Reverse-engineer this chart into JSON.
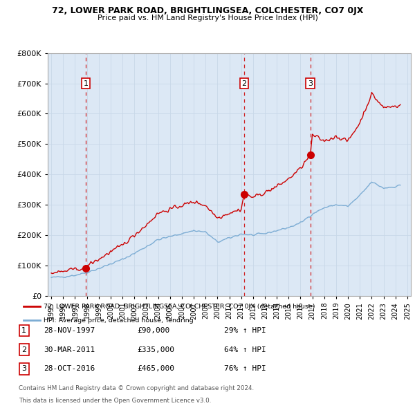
{
  "title": "72, LOWER PARK ROAD, BRIGHTLINGSEA, COLCHESTER, CO7 0JX",
  "subtitle": "Price paid vs. HM Land Registry's House Price Index (HPI)",
  "legend_line1": "72, LOWER PARK ROAD, BRIGHTLINGSEA, COLCHESTER, CO7 0JX (detached house)",
  "legend_line2": "HPI: Average price, detached house, Tendring",
  "sale_dates": [
    "28-NOV-1997",
    "30-MAR-2011",
    "28-OCT-2016"
  ],
  "sale_prices": [
    90000,
    335000,
    465000
  ],
  "sale_hpi_pct": [
    "29%",
    "64%",
    "76%"
  ],
  "footer1": "Contains HM Land Registry data © Crown copyright and database right 2024.",
  "footer2": "This data is licensed under the Open Government Licence v3.0.",
  "red_color": "#cc0000",
  "blue_color": "#7dadd4",
  "grid_color": "#c8d8e8",
  "bg_color": "#ffffff",
  "chart_bg": "#dce8f5",
  "ylim": [
    0,
    800000
  ],
  "yticks": [
    0,
    100000,
    200000,
    300000,
    400000,
    500000,
    600000,
    700000,
    800000
  ],
  "xlim_start": 1994.7,
  "xlim_end": 2025.3,
  "sale_years": [
    1997.91,
    2011.25,
    2016.83
  ],
  "hpi_anchors_x": [
    1995,
    1996,
    1997,
    1998,
    1999,
    2000,
    2001,
    2002,
    2003,
    2004,
    2005,
    2006,
    2007,
    2008,
    2009,
    2010,
    2011,
    2012,
    2013,
    2014,
    2015,
    2016,
    2017,
    2018,
    2019,
    2020,
    2021,
    2022,
    2023,
    2024,
    2024.5
  ],
  "hpi_anchors_y": [
    60000,
    63000,
    68000,
    77000,
    90000,
    105000,
    120000,
    140000,
    162000,
    185000,
    195000,
    205000,
    215000,
    210000,
    177000,
    190000,
    204000,
    200000,
    205000,
    215000,
    225000,
    240000,
    270000,
    290000,
    300000,
    295000,
    330000,
    375000,
    355000,
    360000,
    365000
  ],
  "red_anchors_x": [
    1995,
    1996,
    1997,
    1997.91,
    1998,
    1999,
    2000,
    2001,
    2002,
    2003,
    2004,
    2005,
    2006,
    2007,
    2008,
    2009,
    2010,
    2011,
    2011.25,
    2012,
    2013,
    2014,
    2015,
    2016,
    2016.83,
    2017,
    2018,
    2019,
    2020,
    2021,
    2022,
    2023,
    2024,
    2024.5
  ],
  "red_anchors_y": [
    75000,
    80000,
    88000,
    90000,
    100000,
    120000,
    145000,
    167000,
    200000,
    233000,
    272000,
    285000,
    298000,
    310000,
    298000,
    257000,
    273000,
    285000,
    335000,
    325000,
    340000,
    360000,
    385000,
    420000,
    465000,
    530000,
    510000,
    525000,
    510000,
    570000,
    665000,
    620000,
    625000,
    630000
  ]
}
